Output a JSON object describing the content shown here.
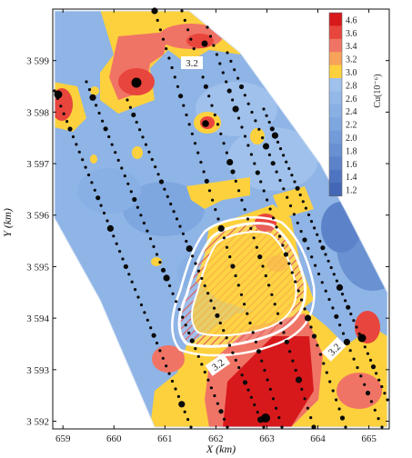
{
  "map": {
    "xlabel": "X (km)",
    "ylabel": "Y (km)",
    "x_ticks": [
      "659",
      "660",
      "661",
      "662",
      "663",
      "664",
      "665"
    ],
    "y_ticks": [
      "3 592",
      "3 593",
      "3 594",
      "3 595",
      "3 596",
      "3 597",
      "3 598",
      "3 599"
    ],
    "x_range_km": [
      658.8,
      665.4
    ],
    "y_range_km": [
      3591.85,
      3600.0
    ],
    "contour_labels": [
      "3.2",
      "3.2",
      "3.2"
    ]
  },
  "colorbar": {
    "title": "Cu(10⁻⁶)",
    "levels": [
      {
        "label": "4.6",
        "color": "#d7191c"
      },
      {
        "label": "3.6",
        "color": "#e8453c"
      },
      {
        "label": "3.4",
        "color": "#f07466"
      },
      {
        "label": "3.2",
        "color": "#f7a35a"
      },
      {
        "label": "3.0",
        "color": "#fdd13d"
      },
      {
        "label": "2.8",
        "color": "#9fc1ec"
      },
      {
        "label": "2.6",
        "color": "#94b8e8"
      },
      {
        "label": "2.4",
        "color": "#88b0e4"
      },
      {
        "label": "2.2",
        "color": "#7ea6df"
      },
      {
        "label": "2.0",
        "color": "#739bd9"
      },
      {
        "label": "1.8",
        "color": "#6890d2"
      },
      {
        "label": "1.6",
        "color": "#5c83ca"
      },
      {
        "label": "1.4",
        "color": "#4f74c1"
      },
      {
        "label": "1.2",
        "color": "#4366b7"
      }
    ]
  }
}
